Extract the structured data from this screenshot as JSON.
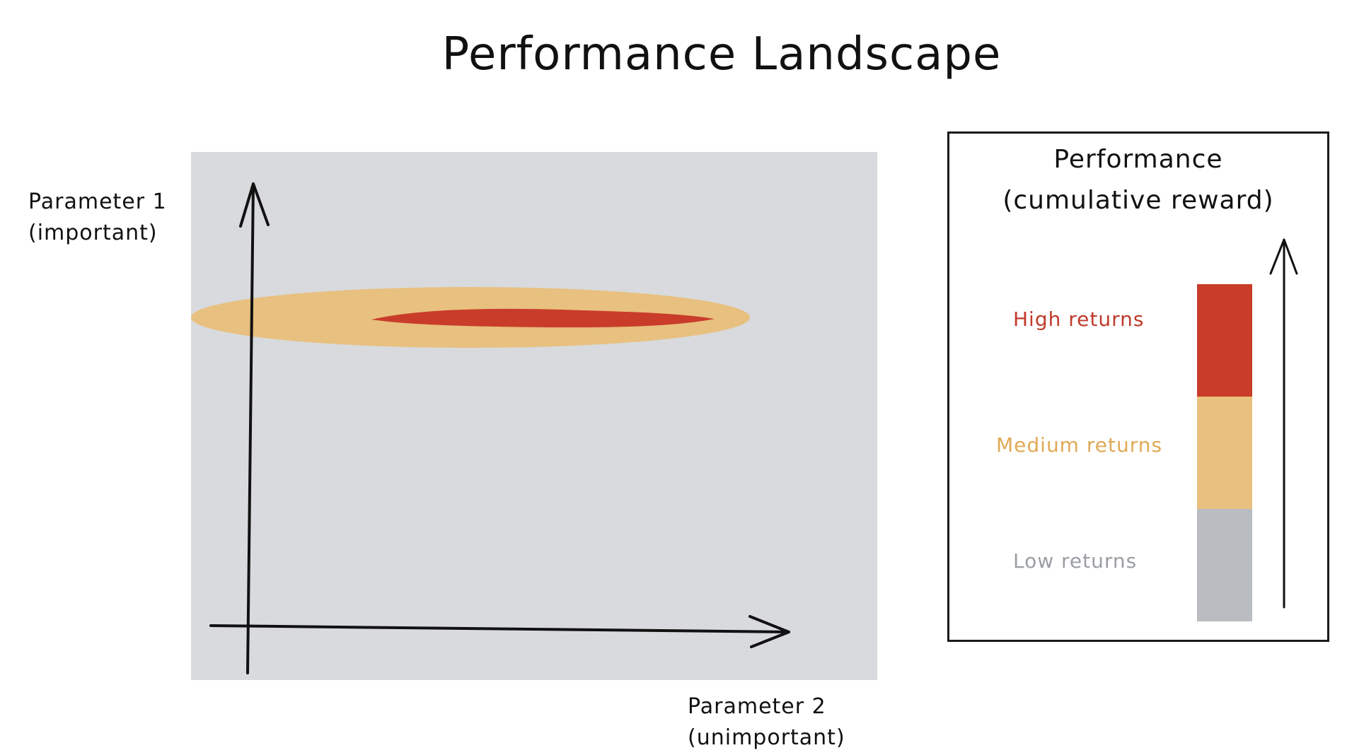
{
  "title": "Performance Landscape",
  "axes": {
    "y_label_line1": "Parameter 1",
    "y_label_line2": "(important)",
    "x_label_line1": "Parameter 2",
    "x_label_line2": "(unimportant)"
  },
  "legend": {
    "title_line1": "Performance",
    "title_line2": "(cumulative reward)",
    "items": [
      {
        "label": "High returns",
        "color": "#c93c2a"
      },
      {
        "label": "Medium returns",
        "color": "#e8c07f"
      },
      {
        "label": "Low returns",
        "color": "#b9bcc0"
      }
    ]
  },
  "colors": {
    "plot_background": "#d8dadd",
    "high_region": "#c93c2a",
    "medium_region": "#e8c07f",
    "low_region": "#b9bcc0",
    "ink": "#111111"
  }
}
